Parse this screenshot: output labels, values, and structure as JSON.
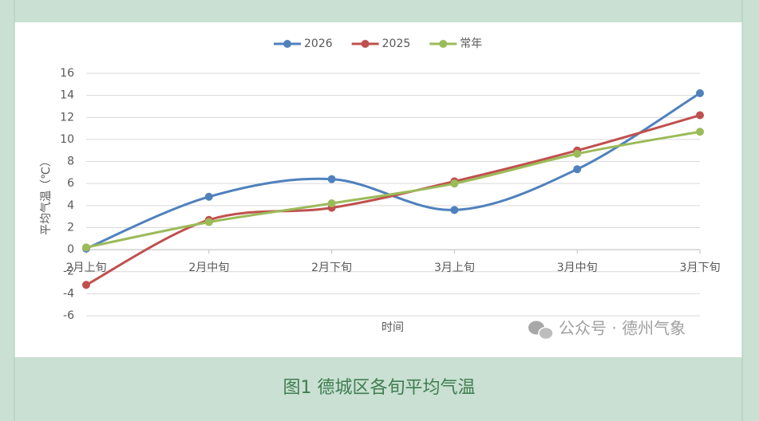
{
  "chart_data": {
    "type": "line",
    "smooth": true,
    "categories": [
      "2月上旬",
      "2月中旬",
      "2月下旬",
      "3月上旬",
      "3月中旬",
      "3月下旬"
    ],
    "series": [
      {
        "name": "2026",
        "color": "#4f81bd",
        "values": [
          0.1,
          4.8,
          6.4,
          3.6,
          7.3,
          14.2
        ]
      },
      {
        "name": "2025",
        "color": "#c0504d",
        "values": [
          -3.2,
          2.7,
          3.8,
          6.2,
          9.0,
          12.2
        ]
      },
      {
        "name": "常年",
        "color": "#9bbb59",
        "values": [
          0.2,
          2.5,
          4.2,
          6.0,
          8.7,
          10.7
        ]
      }
    ],
    "x_label": "时间",
    "y_label": "平均气温（℃）",
    "ylim": [
      -6,
      16
    ],
    "yticks": [
      -6,
      -4,
      -2,
      0,
      2,
      4,
      6,
      8,
      10,
      12,
      14,
      16
    ],
    "grid": true,
    "legend": "top"
  },
  "watermark": "公众号 · 德州气象",
  "caption": "图1 德城区各旬平均气温"
}
